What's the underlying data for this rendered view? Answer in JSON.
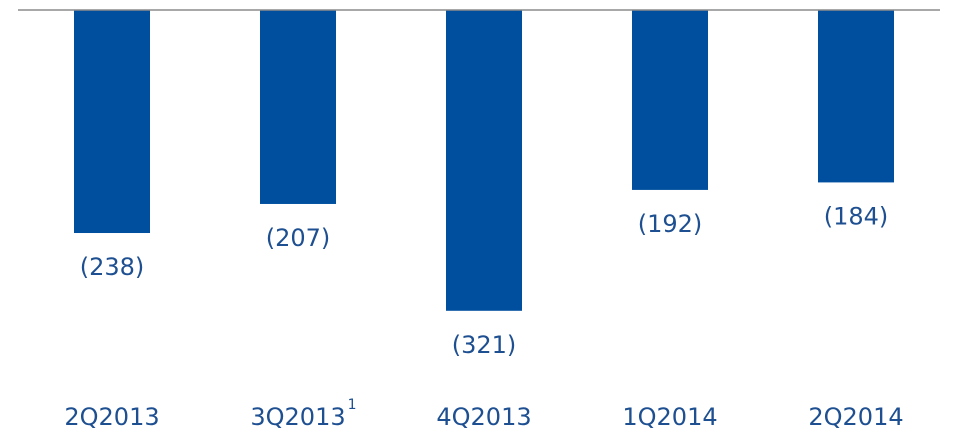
{
  "chart_data": {
    "type": "bar",
    "categories": [
      "2Q2013",
      "3Q2013",
      "4Q2013",
      "1Q2014",
      "2Q2014"
    ],
    "category_notes": [
      null,
      "1",
      null,
      null,
      null
    ],
    "values": [
      -238,
      -207,
      -321,
      -192,
      -184
    ],
    "value_labels": [
      "(238)",
      "(207)",
      "(321)",
      "(192)",
      "(184)"
    ],
    "color": "#004f9f",
    "ylim": [
      -340,
      0
    ]
  }
}
